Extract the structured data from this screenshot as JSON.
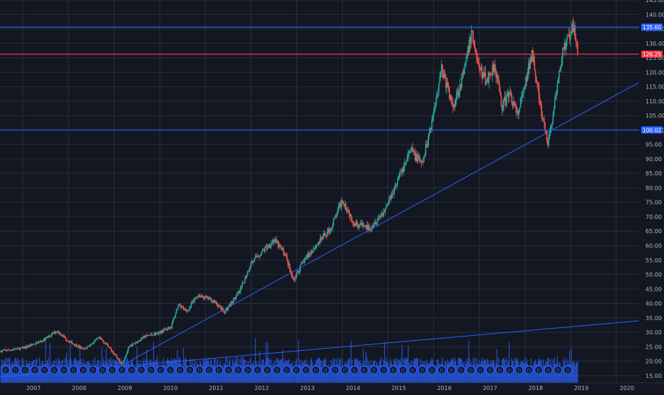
{
  "chart_data": {
    "type": "candlestick",
    "interval": "weekly",
    "x_axis": {
      "tick_labels": [
        "2007",
        "2008",
        "2009",
        "2010",
        "2011",
        "2012",
        "2013",
        "2014",
        "2015",
        "2016",
        "2017",
        "2018",
        "2019",
        "2020"
      ],
      "range": [
        "2006-07",
        "2020-07"
      ]
    },
    "y_axis": {
      "tick_labels": [
        "15.00",
        "20.00",
        "25.00",
        "30.00",
        "35.00",
        "40.00",
        "45.00",
        "50.00",
        "55.00",
        "60.00",
        "65.00",
        "70.00",
        "75.00",
        "80.00",
        "85.00",
        "90.00",
        "95.00",
        "100.00",
        "105.00",
        "110.00",
        "115.00",
        "120.00",
        "125.00",
        "130.00",
        "135.00",
        "140.00",
        "145.00"
      ],
      "range": [
        12.5,
        145
      ],
      "position": "right"
    },
    "price_anchors": [
      [
        "2006-07",
        23.5
      ],
      [
        "2007-01",
        24.5
      ],
      [
        "2007-06",
        27
      ],
      [
        "2007-10",
        30.5
      ],
      [
        "2008-01",
        27
      ],
      [
        "2008-05",
        24
      ],
      [
        "2008-09",
        28
      ],
      [
        "2008-11",
        26
      ],
      [
        "2009-03",
        19
      ],
      [
        "2009-05",
        25
      ],
      [
        "2009-09",
        28.5
      ],
      [
        "2010-01",
        30
      ],
      [
        "2010-04",
        32
      ],
      [
        "2010-06",
        40
      ],
      [
        "2010-08",
        37
      ],
      [
        "2010-11",
        43
      ],
      [
        "2011-03",
        41
      ],
      [
        "2011-06",
        37
      ],
      [
        "2011-10",
        44
      ],
      [
        "2012-01",
        54
      ],
      [
        "2012-04",
        58
      ],
      [
        "2012-07",
        62
      ],
      [
        "2012-10",
        57
      ],
      [
        "2012-12",
        48
      ],
      [
        "2013-03",
        55
      ],
      [
        "2013-06",
        60
      ],
      [
        "2013-10",
        66
      ],
      [
        "2014-01",
        76
      ],
      [
        "2014-04",
        68
      ],
      [
        "2014-08",
        66
      ],
      [
        "2014-12",
        72
      ],
      [
        "2015-04",
        84
      ],
      [
        "2015-07",
        93
      ],
      [
        "2015-10",
        88
      ],
      [
        "2016-01",
        106
      ],
      [
        "2016-03",
        122
      ],
      [
        "2016-06",
        108
      ],
      [
        "2016-09",
        120
      ],
      [
        "2016-11",
        134
      ],
      [
        "2017-01",
        121
      ],
      [
        "2017-03",
        117
      ],
      [
        "2017-05",
        123
      ],
      [
        "2017-07",
        108
      ],
      [
        "2017-09",
        113
      ],
      [
        "2017-11",
        105
      ],
      [
        "2018-01",
        115
      ],
      [
        "2018-03",
        128
      ],
      [
        "2018-05",
        108
      ],
      [
        "2018-07",
        95
      ],
      [
        "2018-09",
        110
      ],
      [
        "2018-11",
        128
      ],
      [
        "2019-01",
        133
      ],
      [
        "2019-02",
        135.6
      ],
      [
        "2019-03",
        126.25
      ]
    ],
    "horizontal_lines": [
      {
        "value": 135.6,
        "label": "135.60",
        "color": "#2962ff"
      },
      {
        "value": 126.25,
        "label": "126.25",
        "color": "#f23645"
      },
      {
        "value": 100.02,
        "label": "100.02",
        "color": "#2962ff"
      }
    ],
    "trend_lines": [
      {
        "from": [
          "2009-03",
          18.5
        ],
        "to": [
          "2020-07",
          116.5
        ],
        "color": "#2962ff"
      },
      {
        "from": [
          "2006-07",
          14.5
        ],
        "to": [
          "2020-07",
          34
        ],
        "color": "#2962ff"
      }
    ],
    "dividend_marker_label": "D",
    "colors": {
      "background": "#131722",
      "grid": "#2a2e39",
      "up": "#26a69a",
      "down": "#ef5350",
      "volume": "#2962ff",
      "axis_text": "#b2b5be"
    }
  }
}
